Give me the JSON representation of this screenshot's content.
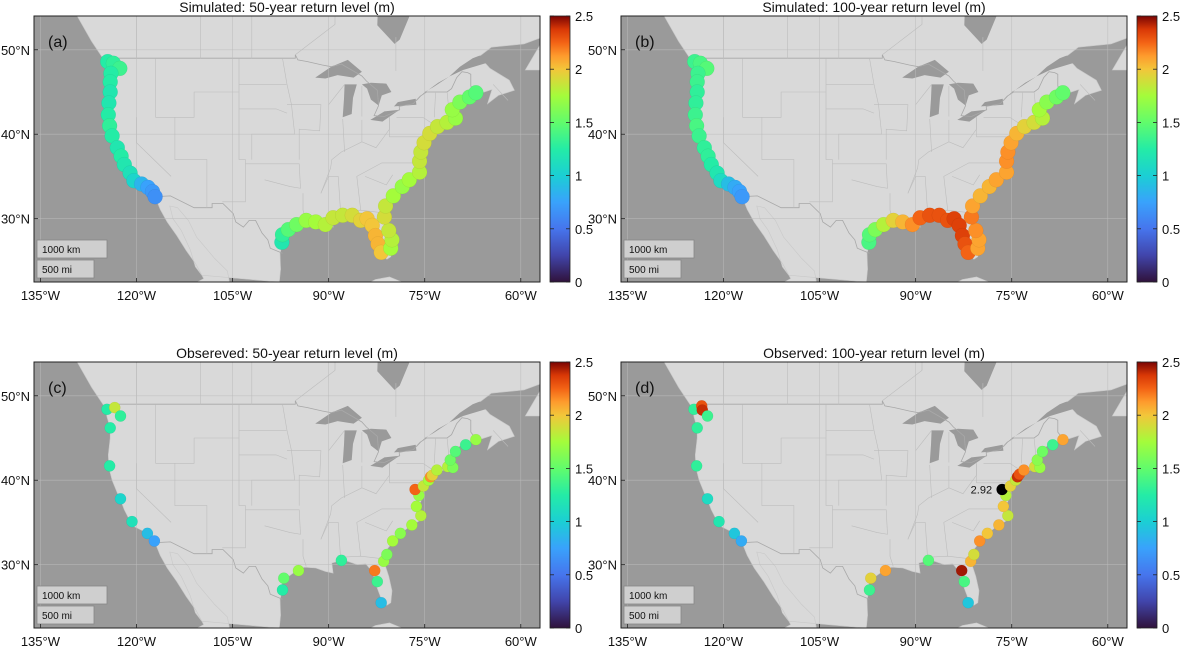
{
  "colors": {
    "ocean": "#9a9a9a",
    "land": "#d9d9d9",
    "border": "#bdbdbd",
    "lake": "#9a9a9a"
  },
  "scale_bar": {
    "km": "1000 km",
    "mi": "500 mi"
  },
  "chart_data": [
    {
      "type": "scatter",
      "letter": "(a)",
      "title": "Simulated: 50-year return level (m)",
      "xlabel": "",
      "ylabel": "",
      "xlim": [
        -136,
        -57
      ],
      "ylim": [
        22.5,
        54
      ],
      "x_ticks": [
        "135°W",
        "120°W",
        "105°W",
        "90°W",
        "75°W",
        "60°W"
      ],
      "x_tick_values": [
        -135,
        -120,
        -105,
        -90,
        -75,
        -60
      ],
      "y_ticks": [
        "50°N",
        "40°N",
        "30°N"
      ],
      "y_tick_values": [
        50,
        40,
        30
      ],
      "colorbar": {
        "min": 0,
        "max": 2.5,
        "ticks": [
          "0",
          "0.5",
          "1",
          "1.5",
          "2",
          "2.5"
        ]
      },
      "grid": true,
      "points": [
        {
          "lon": -124.5,
          "lat": 48.6,
          "v": 1.25
        },
        {
          "lon": -123.6,
          "lat": 48.4,
          "v": 1.3
        },
        {
          "lon": -122.6,
          "lat": 47.8,
          "v": 1.35
        },
        {
          "lon": -124.0,
          "lat": 47.2,
          "v": 1.25
        },
        {
          "lon": -124.1,
          "lat": 46.2,
          "v": 1.25
        },
        {
          "lon": -124.1,
          "lat": 45.0,
          "v": 1.2
        },
        {
          "lon": -124.3,
          "lat": 43.7,
          "v": 1.2
        },
        {
          "lon": -124.4,
          "lat": 42.3,
          "v": 1.25
        },
        {
          "lon": -124.2,
          "lat": 41.0,
          "v": 1.3
        },
        {
          "lon": -123.8,
          "lat": 39.8,
          "v": 1.25
        },
        {
          "lon": -123.0,
          "lat": 38.4,
          "v": 1.2
        },
        {
          "lon": -122.4,
          "lat": 37.4,
          "v": 1.25
        },
        {
          "lon": -121.9,
          "lat": 36.4,
          "v": 1.2
        },
        {
          "lon": -121.0,
          "lat": 35.4,
          "v": 1.15
        },
        {
          "lon": -120.4,
          "lat": 34.5,
          "v": 1.05
        },
        {
          "lon": -119.2,
          "lat": 34.1,
          "v": 0.85
        },
        {
          "lon": -118.2,
          "lat": 33.7,
          "v": 0.75
        },
        {
          "lon": -117.5,
          "lat": 33.2,
          "v": 0.7
        },
        {
          "lon": -117.1,
          "lat": 32.6,
          "v": 0.65
        },
        {
          "lon": -97.3,
          "lat": 27.2,
          "v": 1.2
        },
        {
          "lon": -97.2,
          "lat": 28.1,
          "v": 1.3
        },
        {
          "lon": -96.3,
          "lat": 28.7,
          "v": 1.45
        },
        {
          "lon": -95.0,
          "lat": 29.3,
          "v": 1.55
        },
        {
          "lon": -93.5,
          "lat": 29.8,
          "v": 1.7
        },
        {
          "lon": -92.0,
          "lat": 29.6,
          "v": 1.75
        },
        {
          "lon": -90.5,
          "lat": 29.3,
          "v": 1.8
        },
        {
          "lon": -89.3,
          "lat": 30.1,
          "v": 1.85
        },
        {
          "lon": -87.8,
          "lat": 30.4,
          "v": 1.85
        },
        {
          "lon": -86.3,
          "lat": 30.4,
          "v": 1.9
        },
        {
          "lon": -85.0,
          "lat": 29.8,
          "v": 1.95
        },
        {
          "lon": -84.0,
          "lat": 30.0,
          "v": 2.0
        },
        {
          "lon": -83.2,
          "lat": 29.2,
          "v": 2.0
        },
        {
          "lon": -82.7,
          "lat": 28.0,
          "v": 2.05
        },
        {
          "lon": -82.3,
          "lat": 27.0,
          "v": 2.05
        },
        {
          "lon": -81.8,
          "lat": 26.0,
          "v": 2.0
        },
        {
          "lon": -80.3,
          "lat": 26.5,
          "v": 1.75
        },
        {
          "lon": -80.1,
          "lat": 27.5,
          "v": 1.8
        },
        {
          "lon": -80.6,
          "lat": 28.6,
          "v": 1.85
        },
        {
          "lon": -81.3,
          "lat": 30.2,
          "v": 1.9
        },
        {
          "lon": -81.1,
          "lat": 31.5,
          "v": 1.85
        },
        {
          "lon": -79.9,
          "lat": 32.7,
          "v": 1.75
        },
        {
          "lon": -78.5,
          "lat": 33.8,
          "v": 1.7
        },
        {
          "lon": -77.4,
          "lat": 34.6,
          "v": 1.75
        },
        {
          "lon": -75.8,
          "lat": 35.5,
          "v": 1.8
        },
        {
          "lon": -75.8,
          "lat": 36.8,
          "v": 1.85
        },
        {
          "lon": -75.6,
          "lat": 37.9,
          "v": 1.85
        },
        {
          "lon": -75.1,
          "lat": 39.0,
          "v": 1.9
        },
        {
          "lon": -74.2,
          "lat": 40.1,
          "v": 1.9
        },
        {
          "lon": -73.0,
          "lat": 40.9,
          "v": 1.85
        },
        {
          "lon": -71.5,
          "lat": 41.4,
          "v": 1.8
        },
        {
          "lon": -70.2,
          "lat": 41.9,
          "v": 1.7
        },
        {
          "lon": -70.7,
          "lat": 42.9,
          "v": 1.7
        },
        {
          "lon": -69.5,
          "lat": 43.8,
          "v": 1.6
        },
        {
          "lon": -68.0,
          "lat": 44.4,
          "v": 1.5
        },
        {
          "lon": -67.0,
          "lat": 44.9,
          "v": 1.45
        }
      ]
    },
    {
      "type": "scatter",
      "letter": "(b)",
      "title": "Simulated: 100-year return level (m)",
      "xlabel": "",
      "ylabel": "",
      "xlim": [
        -136,
        -57
      ],
      "ylim": [
        22.5,
        54
      ],
      "x_ticks": [
        "135°W",
        "120°W",
        "105°W",
        "90°W",
        "75°W",
        "60°W"
      ],
      "x_tick_values": [
        -135,
        -120,
        -105,
        -90,
        -75,
        -60
      ],
      "y_ticks": [
        "50°N",
        "40°N",
        "30°N"
      ],
      "y_tick_values": [
        50,
        40,
        30
      ],
      "colorbar": {
        "min": 0,
        "max": 2.5,
        "ticks": [
          "0",
          "0.5",
          "1",
          "1.5",
          "2",
          "2.5"
        ]
      },
      "grid": true,
      "points": [
        {
          "lon": -124.5,
          "lat": 48.6,
          "v": 1.35
        },
        {
          "lon": -123.6,
          "lat": 48.4,
          "v": 1.4
        },
        {
          "lon": -122.6,
          "lat": 47.8,
          "v": 1.45
        },
        {
          "lon": -124.0,
          "lat": 47.2,
          "v": 1.35
        },
        {
          "lon": -124.1,
          "lat": 46.2,
          "v": 1.35
        },
        {
          "lon": -124.1,
          "lat": 45.0,
          "v": 1.3
        },
        {
          "lon": -124.3,
          "lat": 43.7,
          "v": 1.3
        },
        {
          "lon": -124.4,
          "lat": 42.3,
          "v": 1.35
        },
        {
          "lon": -124.2,
          "lat": 41.0,
          "v": 1.4
        },
        {
          "lon": -123.8,
          "lat": 39.8,
          "v": 1.35
        },
        {
          "lon": -123.0,
          "lat": 38.4,
          "v": 1.3
        },
        {
          "lon": -122.4,
          "lat": 37.4,
          "v": 1.3
        },
        {
          "lon": -121.9,
          "lat": 36.4,
          "v": 1.25
        },
        {
          "lon": -121.0,
          "lat": 35.4,
          "v": 1.2
        },
        {
          "lon": -120.4,
          "lat": 34.5,
          "v": 1.1
        },
        {
          "lon": -119.2,
          "lat": 34.1,
          "v": 0.9
        },
        {
          "lon": -118.2,
          "lat": 33.7,
          "v": 0.8
        },
        {
          "lon": -117.5,
          "lat": 33.2,
          "v": 0.75
        },
        {
          "lon": -117.1,
          "lat": 32.6,
          "v": 0.7
        },
        {
          "lon": -97.3,
          "lat": 27.2,
          "v": 1.4
        },
        {
          "lon": -97.2,
          "lat": 28.1,
          "v": 1.45
        },
        {
          "lon": -96.3,
          "lat": 28.7,
          "v": 1.6
        },
        {
          "lon": -95.0,
          "lat": 29.3,
          "v": 1.8
        },
        {
          "lon": -93.5,
          "lat": 29.8,
          "v": 1.95
        },
        {
          "lon": -92.0,
          "lat": 29.6,
          "v": 2.05
        },
        {
          "lon": -90.5,
          "lat": 29.3,
          "v": 2.15
        },
        {
          "lon": -89.3,
          "lat": 30.1,
          "v": 2.25
        },
        {
          "lon": -87.8,
          "lat": 30.4,
          "v": 2.3
        },
        {
          "lon": -86.3,
          "lat": 30.4,
          "v": 2.3
        },
        {
          "lon": -85.0,
          "lat": 29.8,
          "v": 2.3
        },
        {
          "lon": -84.0,
          "lat": 30.0,
          "v": 2.35
        },
        {
          "lon": -83.2,
          "lat": 29.2,
          "v": 2.35
        },
        {
          "lon": -82.7,
          "lat": 28.0,
          "v": 2.35
        },
        {
          "lon": -82.3,
          "lat": 27.0,
          "v": 2.3
        },
        {
          "lon": -81.8,
          "lat": 26.0,
          "v": 2.25
        },
        {
          "lon": -80.3,
          "lat": 26.5,
          "v": 2.1
        },
        {
          "lon": -80.1,
          "lat": 27.5,
          "v": 2.1
        },
        {
          "lon": -80.6,
          "lat": 28.6,
          "v": 2.15
        },
        {
          "lon": -81.3,
          "lat": 30.2,
          "v": 2.2
        },
        {
          "lon": -81.1,
          "lat": 31.5,
          "v": 2.1
        },
        {
          "lon": -79.9,
          "lat": 32.7,
          "v": 2.05
        },
        {
          "lon": -78.5,
          "lat": 33.8,
          "v": 2.05
        },
        {
          "lon": -77.4,
          "lat": 34.6,
          "v": 2.1
        },
        {
          "lon": -75.8,
          "lat": 35.5,
          "v": 2.1
        },
        {
          "lon": -75.8,
          "lat": 36.8,
          "v": 2.15
        },
        {
          "lon": -75.6,
          "lat": 37.9,
          "v": 2.15
        },
        {
          "lon": -75.1,
          "lat": 39.0,
          "v": 2.1
        },
        {
          "lon": -74.2,
          "lat": 40.1,
          "v": 2.05
        },
        {
          "lon": -73.0,
          "lat": 40.9,
          "v": 1.95
        },
        {
          "lon": -71.5,
          "lat": 41.4,
          "v": 1.9
        },
        {
          "lon": -70.2,
          "lat": 41.9,
          "v": 1.8
        },
        {
          "lon": -70.7,
          "lat": 42.9,
          "v": 1.75
        },
        {
          "lon": -69.5,
          "lat": 43.8,
          "v": 1.65
        },
        {
          "lon": -68.0,
          "lat": 44.4,
          "v": 1.55
        },
        {
          "lon": -67.0,
          "lat": 44.9,
          "v": 1.5
        }
      ]
    },
    {
      "type": "scatter",
      "letter": "(c)",
      "title": "Obsereved: 50-year return level (m)",
      "xlabel": "",
      "ylabel": "",
      "xlim": [
        -136,
        -57
      ],
      "ylim": [
        22.5,
        54
      ],
      "x_ticks": [
        "135°W",
        "120°W",
        "105°W",
        "90°W",
        "75°W",
        "60°W"
      ],
      "x_tick_values": [
        -135,
        -120,
        -105,
        -90,
        -75,
        -60
      ],
      "y_ticks": [
        "50°N",
        "40°N",
        "30°N"
      ],
      "y_tick_values": [
        50,
        40,
        30
      ],
      "colorbar": {
        "min": 0,
        "max": 2.5,
        "ticks": [
          "0",
          "0.5",
          "1",
          "1.5",
          "2",
          "2.5"
        ]
      },
      "grid": true,
      "points": [
        {
          "lon": -124.6,
          "lat": 48.4,
          "v": 1.25
        },
        {
          "lon": -123.4,
          "lat": 48.6,
          "v": 1.85
        },
        {
          "lon": -122.5,
          "lat": 47.6,
          "v": 1.3
        },
        {
          "lon": -124.1,
          "lat": 46.2,
          "v": 1.25
        },
        {
          "lon": -124.2,
          "lat": 41.7,
          "v": 1.25
        },
        {
          "lon": -122.5,
          "lat": 37.8,
          "v": 1.05
        },
        {
          "lon": -120.7,
          "lat": 35.1,
          "v": 1.15
        },
        {
          "lon": -118.3,
          "lat": 33.7,
          "v": 0.9
        },
        {
          "lon": -117.2,
          "lat": 32.8,
          "v": 0.75
        },
        {
          "lon": -97.2,
          "lat": 27.0,
          "v": 1.25
        },
        {
          "lon": -97.0,
          "lat": 28.4,
          "v": 1.5
        },
        {
          "lon": -94.7,
          "lat": 29.3,
          "v": 1.7
        },
        {
          "lon": -88.0,
          "lat": 30.5,
          "v": 1.3
        },
        {
          "lon": -82.8,
          "lat": 29.3,
          "v": 2.2
        },
        {
          "lon": -82.4,
          "lat": 28.0,
          "v": 1.35
        },
        {
          "lon": -81.8,
          "lat": 25.5,
          "v": 0.9
        },
        {
          "lon": -81.4,
          "lat": 30.4,
          "v": 1.7
        },
        {
          "lon": -80.9,
          "lat": 31.2,
          "v": 1.6
        },
        {
          "lon": -80.0,
          "lat": 32.8,
          "v": 1.75
        },
        {
          "lon": -78.8,
          "lat": 33.7,
          "v": 1.65
        },
        {
          "lon": -77.0,
          "lat": 34.7,
          "v": 1.75
        },
        {
          "lon": -75.6,
          "lat": 35.8,
          "v": 1.8
        },
        {
          "lon": -76.3,
          "lat": 36.9,
          "v": 1.75
        },
        {
          "lon": -75.9,
          "lat": 38.2,
          "v": 1.7
        },
        {
          "lon": -76.5,
          "lat": 38.9,
          "v": 2.25
        },
        {
          "lon": -75.2,
          "lat": 39.3,
          "v": 1.85
        },
        {
          "lon": -74.4,
          "lat": 40.0,
          "v": 1.75
        },
        {
          "lon": -74.1,
          "lat": 40.4,
          "v": 2.15
        },
        {
          "lon": -73.8,
          "lat": 40.6,
          "v": 1.95
        },
        {
          "lon": -73.1,
          "lat": 41.2,
          "v": 1.8
        },
        {
          "lon": -71.4,
          "lat": 41.6,
          "v": 1.8
        },
        {
          "lon": -70.6,
          "lat": 41.5,
          "v": 1.6
        },
        {
          "lon": -71.0,
          "lat": 42.4,
          "v": 1.55
        },
        {
          "lon": -70.2,
          "lat": 43.4,
          "v": 1.45
        },
        {
          "lon": -68.6,
          "lat": 44.2,
          "v": 1.35
        },
        {
          "lon": -67.0,
          "lat": 44.8,
          "v": 1.7
        }
      ]
    },
    {
      "type": "scatter",
      "letter": "(d)",
      "title": "Observed: 100-year return level (m)",
      "xlabel": "",
      "ylabel": "",
      "xlim": [
        -136,
        -57
      ],
      "ylim": [
        22.5,
        54
      ],
      "x_ticks": [
        "135°W",
        "120°W",
        "105°W",
        "90°W",
        "75°W",
        "60°W"
      ],
      "x_tick_values": [
        -135,
        -120,
        -105,
        -90,
        -75,
        -60
      ],
      "y_ticks": [
        "50°N",
        "40°N",
        "30°N"
      ],
      "y_tick_values": [
        50,
        40,
        30
      ],
      "colorbar": {
        "min": 0,
        "max": 2.5,
        "ticks": [
          "0",
          "0.5",
          "1",
          "1.5",
          "2",
          "2.5"
        ]
      },
      "grid": true,
      "annotations": [
        {
          "text": "2.92",
          "lon": -76.5,
          "lat": 38.9
        }
      ],
      "points": [
        {
          "lon": -124.6,
          "lat": 48.4,
          "v": 1.3
        },
        {
          "lon": -123.4,
          "lat": 48.8,
          "v": 2.3
        },
        {
          "lon": -123.3,
          "lat": 48.3,
          "v": 2.4
        },
        {
          "lon": -122.5,
          "lat": 47.6,
          "v": 1.35
        },
        {
          "lon": -124.1,
          "lat": 46.2,
          "v": 1.3
        },
        {
          "lon": -124.2,
          "lat": 41.7,
          "v": 1.3
        },
        {
          "lon": -122.5,
          "lat": 37.8,
          "v": 1.1
        },
        {
          "lon": -120.7,
          "lat": 35.1,
          "v": 1.2
        },
        {
          "lon": -118.3,
          "lat": 33.7,
          "v": 0.95
        },
        {
          "lon": -117.2,
          "lat": 32.8,
          "v": 0.8
        },
        {
          "lon": -97.2,
          "lat": 27.0,
          "v": 1.35
        },
        {
          "lon": -97.0,
          "lat": 28.4,
          "v": 1.95
        },
        {
          "lon": -94.7,
          "lat": 29.3,
          "v": 2.1
        },
        {
          "lon": -88.0,
          "lat": 30.5,
          "v": 1.45
        },
        {
          "lon": -82.8,
          "lat": 29.3,
          "v": 2.45
        },
        {
          "lon": -82.4,
          "lat": 28.0,
          "v": 1.4
        },
        {
          "lon": -81.8,
          "lat": 25.5,
          "v": 0.95
        },
        {
          "lon": -81.4,
          "lat": 30.4,
          "v": 2.05
        },
        {
          "lon": -80.9,
          "lat": 31.2,
          "v": 1.9
        },
        {
          "lon": -80.0,
          "lat": 32.8,
          "v": 2.15
        },
        {
          "lon": -78.8,
          "lat": 33.7,
          "v": 2.0
        },
        {
          "lon": -77.0,
          "lat": 34.7,
          "v": 2.05
        },
        {
          "lon": -75.6,
          "lat": 35.8,
          "v": 1.85
        },
        {
          "lon": -76.3,
          "lat": 36.9,
          "v": 2.0
        },
        {
          "lon": -75.9,
          "lat": 38.2,
          "v": 1.8
        },
        {
          "lon": -76.5,
          "lat": 38.9,
          "v": 2.92
        },
        {
          "lon": -75.2,
          "lat": 39.3,
          "v": 1.95
        },
        {
          "lon": -74.4,
          "lat": 40.0,
          "v": 1.85
        },
        {
          "lon": -74.1,
          "lat": 40.4,
          "v": 2.4
        },
        {
          "lon": -73.8,
          "lat": 40.7,
          "v": 2.3
        },
        {
          "lon": -73.1,
          "lat": 41.2,
          "v": 2.15
        },
        {
          "lon": -71.4,
          "lat": 41.6,
          "v": 1.9
        },
        {
          "lon": -70.6,
          "lat": 41.5,
          "v": 1.7
        },
        {
          "lon": -71.0,
          "lat": 42.4,
          "v": 1.65
        },
        {
          "lon": -70.2,
          "lat": 43.4,
          "v": 1.55
        },
        {
          "lon": -68.6,
          "lat": 44.2,
          "v": 1.35
        },
        {
          "lon": -67.0,
          "lat": 44.8,
          "v": 2.1
        }
      ]
    }
  ]
}
